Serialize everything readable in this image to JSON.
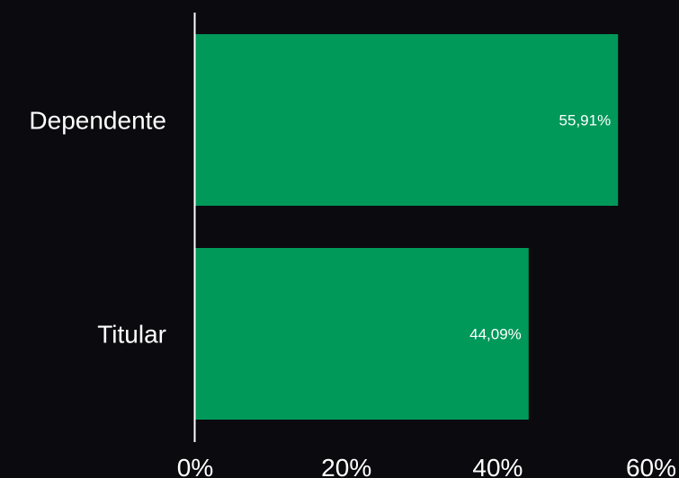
{
  "chart_data": {
    "type": "bar",
    "orientation": "horizontal",
    "title": "",
    "xlabel": "",
    "ylabel": "",
    "categories": [
      "Dependente",
      "Titular"
    ],
    "values": [
      55.91,
      44.09
    ],
    "data_labels": [
      "55,91%",
      "44,09%"
    ],
    "x_ticks": [
      "0%",
      "20%",
      "40%",
      "60%"
    ],
    "xlim": [
      0,
      60
    ],
    "grid": false,
    "legend": "none"
  },
  "colors": {
    "background": "#0b0a0f",
    "bar": "#00995a",
    "text": "#ffffff",
    "axis": "#ffffff"
  }
}
